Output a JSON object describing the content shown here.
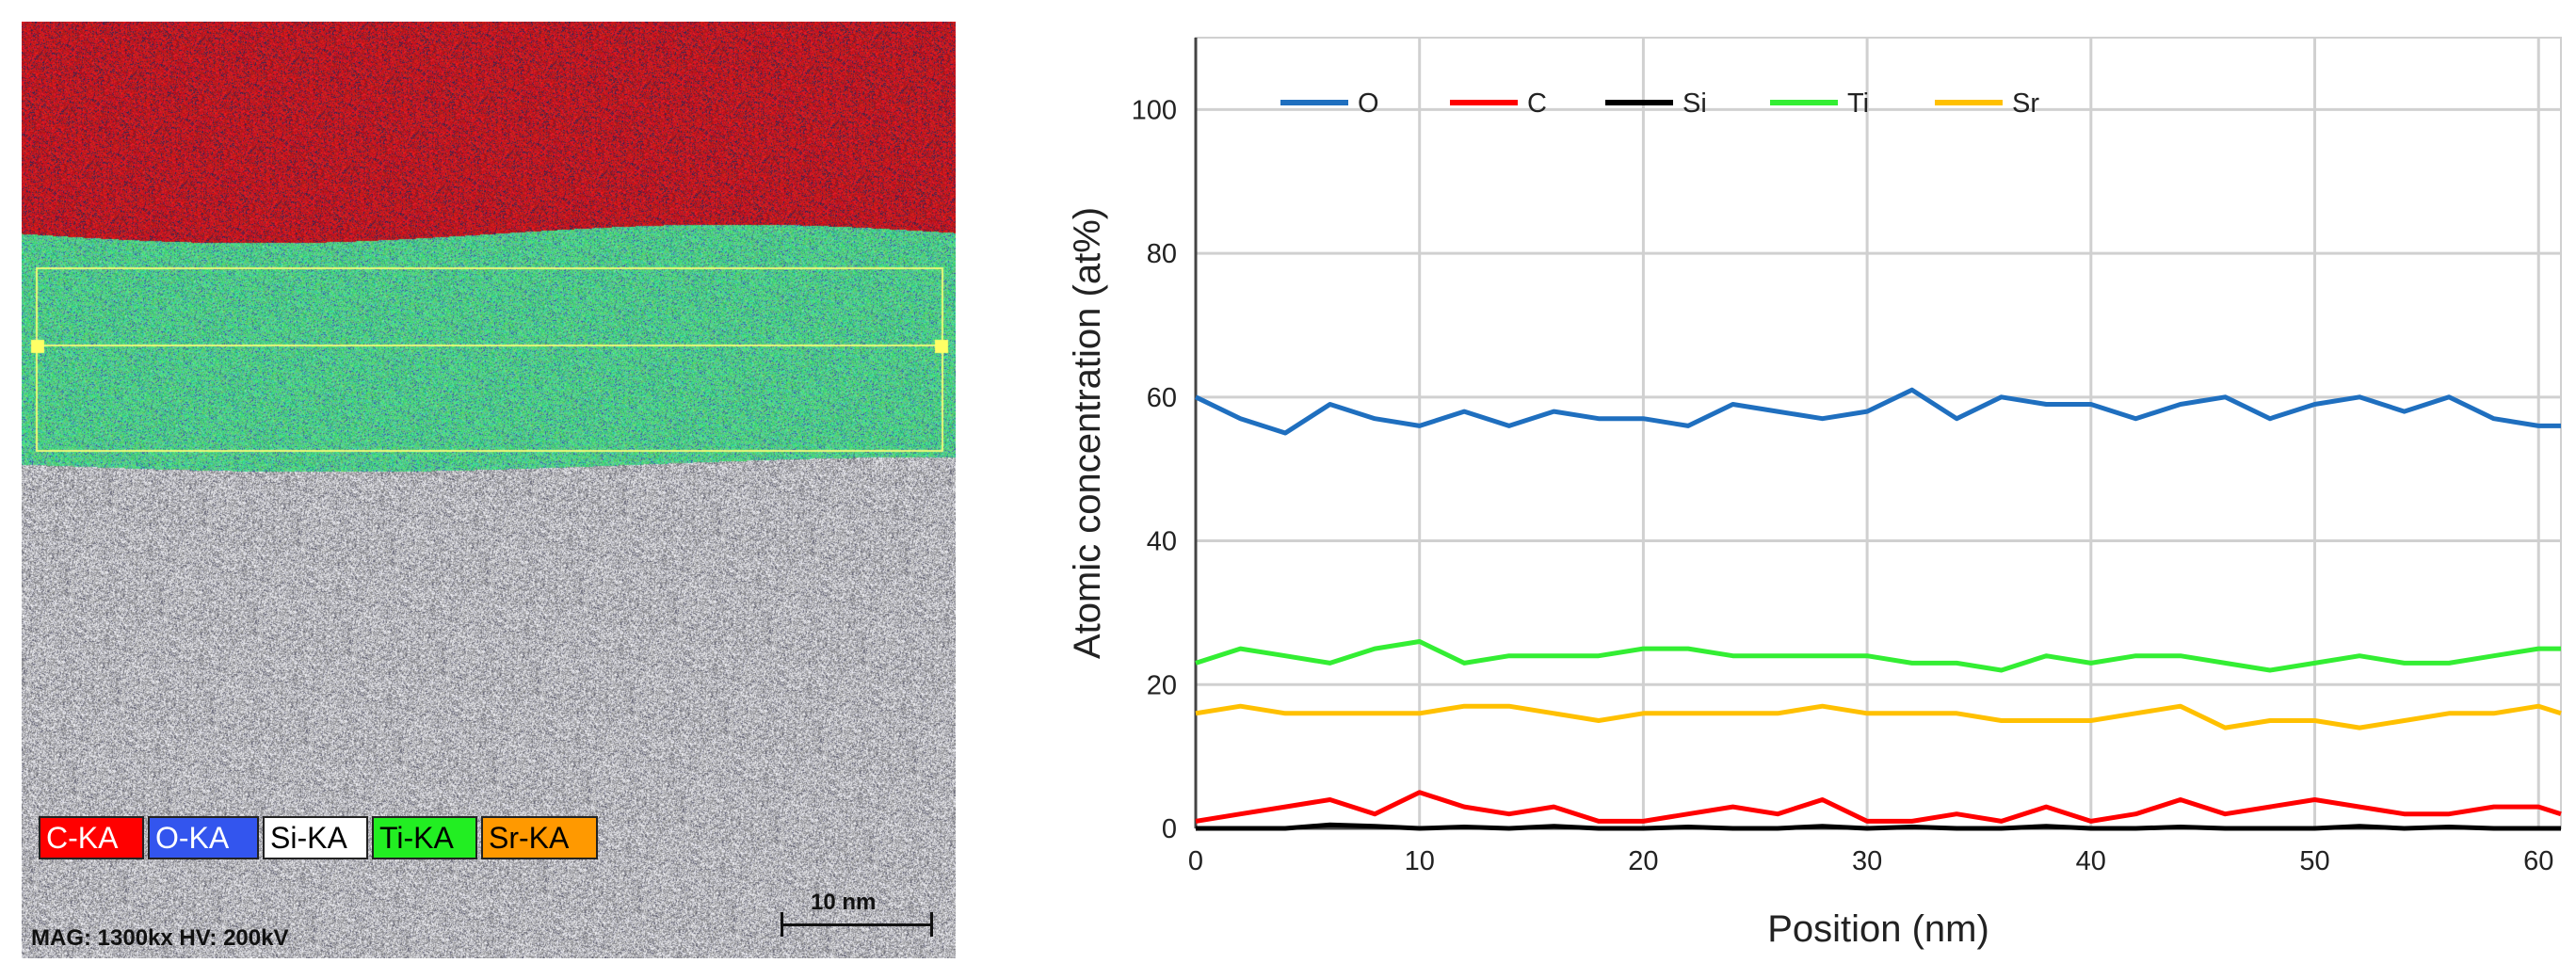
{
  "eds_map": {
    "legend": [
      {
        "label": "C-KA",
        "color": "#ff0000"
      },
      {
        "label": "O-KA",
        "color": "#3355ee"
      },
      {
        "label": "Si-KA",
        "color": "#ffffff"
      },
      {
        "label": "Ti-KA",
        "color": "#22ee22"
      },
      {
        "label": "Sr-KA",
        "color": "#ff9900"
      }
    ],
    "info": "MAG: 1300kx  HV: 200kV",
    "scale_label": "10 nm"
  },
  "chart_data": {
    "type": "line",
    "title": "",
    "xlabel": "Position (nm)",
    "ylabel": "Atomic concentration (at%)",
    "xlim": [
      0,
      61
    ],
    "ylim": [
      0,
      110
    ],
    "xticks": [
      0,
      10,
      20,
      30,
      40,
      50,
      60
    ],
    "yticks": [
      0,
      20,
      40,
      60,
      80,
      100
    ],
    "grid": true,
    "legend_position": "top",
    "x": [
      0,
      2,
      4,
      6,
      8,
      10,
      12,
      14,
      16,
      18,
      20,
      22,
      24,
      26,
      28,
      30,
      32,
      34,
      36,
      38,
      40,
      42,
      44,
      46,
      48,
      50,
      52,
      54,
      56,
      58,
      60,
      61
    ],
    "series": [
      {
        "name": "O",
        "color": "#1f6fbf",
        "values": [
          60,
          57,
          55,
          59,
          57,
          56,
          58,
          56,
          58,
          57,
          57,
          56,
          59,
          58,
          57,
          58,
          61,
          57,
          60,
          59,
          59,
          57,
          59,
          60,
          57,
          59,
          60,
          58,
          60,
          57,
          56,
          56
        ]
      },
      {
        "name": "C",
        "color": "#ff0000",
        "values": [
          1,
          2,
          3,
          4,
          2,
          5,
          3,
          2,
          3,
          1,
          1,
          2,
          3,
          2,
          4,
          1,
          1,
          2,
          1,
          3,
          1,
          2,
          4,
          2,
          3,
          4,
          3,
          2,
          2,
          3,
          3,
          2
        ]
      },
      {
        "name": "Si",
        "color": "#000000",
        "values": [
          0,
          0,
          0,
          0.5,
          0.3,
          0,
          0.2,
          0,
          0.3,
          0,
          0,
          0.2,
          0,
          0,
          0.3,
          0,
          0.2,
          0,
          0,
          0.3,
          0,
          0,
          0.2,
          0,
          0,
          0,
          0.3,
          0,
          0.2,
          0,
          0,
          0
        ]
      },
      {
        "name": "Ti",
        "color": "#33ee33",
        "values": [
          23,
          25,
          24,
          23,
          25,
          26,
          23,
          24,
          24,
          24,
          25,
          25,
          24,
          24,
          24,
          24,
          23,
          23,
          22,
          24,
          23,
          24,
          24,
          23,
          22,
          23,
          24,
          23,
          23,
          24,
          25,
          25
        ]
      },
      {
        "name": "Sr",
        "color": "#ffc000",
        "values": [
          16,
          17,
          16,
          16,
          16,
          16,
          17,
          17,
          16,
          15,
          16,
          16,
          16,
          16,
          17,
          16,
          16,
          16,
          15,
          15,
          15,
          16,
          17,
          14,
          15,
          15,
          14,
          15,
          16,
          16,
          17,
          16
        ]
      }
    ]
  }
}
